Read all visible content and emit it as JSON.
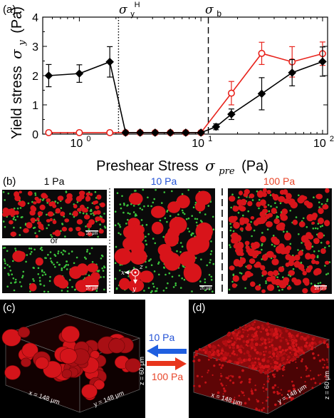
{
  "colors": {
    "series_black": "#000000",
    "series_red": "#e8231c",
    "blue_arrow": "#1f5fe0",
    "red_arrow": "#e8351c",
    "label_1pa": "#000000",
    "label_10pa": "#2453d6",
    "label_100pa": "#e8462a",
    "droplet_red": "#d8141a",
    "particle_green": "#3cc43c",
    "background_dark": "#0a0a0a"
  },
  "panel_a": {
    "tag": "(a)",
    "sigma_y_H": "σ",
    "sigma_y_H_sub": "y",
    "sigma_y_H_sup": "H",
    "sigma_b": "σ",
    "sigma_b_sub": "b"
  },
  "panel_b": {
    "tag": "(b)",
    "label_1pa": "1 Pa",
    "or_text": "or",
    "label_10pa": "10 Pa",
    "label_100pa": "100 Pa",
    "scalebar": "20 μm",
    "axis_x": "x",
    "axis_y": "y",
    "axis_z": "z"
  },
  "panel_c": {
    "tag": "(c)",
    "x_dim": "x = 148 μm",
    "y_dim": "y = 148 μm",
    "z_dim": "z = 60 μm"
  },
  "panel_d": {
    "tag": "(d)",
    "x_dim": "x = 148 μm",
    "y_dim": "y = 148 μm",
    "z_dim": "z = 60 μm"
  },
  "arrows": {
    "top_label": "10 Pa",
    "bottom_label": "100 Pa"
  },
  "chart_data": {
    "type": "scatter",
    "xscale": "log",
    "xlim": [
      0.5,
      110
    ],
    "ylim": [
      0,
      4
    ],
    "xlabel": "Preshear Stress",
    "xlabel_symbol": "σ",
    "xlabel_sub": "pre",
    "xlabel_unit": "(Pa)",
    "ylabel": "Yield stress",
    "ylabel_symbol": "σ",
    "ylabel_sub": "y",
    "ylabel_unit": "(Pa)",
    "xticks": [
      1,
      10,
      100
    ],
    "xtick_labels": [
      "10",
      "10",
      "10"
    ],
    "xtick_exps": [
      "0",
      "1",
      "2"
    ],
    "yticks": [
      0,
      1,
      2,
      3,
      4
    ],
    "ytick_labels": [
      "0",
      "1",
      "2",
      "3",
      "4"
    ],
    "vlines": [
      {
        "x": 2.1,
        "style": "dotted"
      },
      {
        "x": 11.5,
        "style": "dashed"
      }
    ],
    "series": [
      {
        "marker": "filled-diamond",
        "color": "#000000",
        "x": [
          0.56,
          1.0,
          1.78,
          2.4,
          3.16,
          4.2,
          5.6,
          7.5,
          10.0,
          13.3,
          17.8,
          31.6,
          56.2,
          100
        ],
        "y": [
          2.0,
          2.07,
          2.47,
          0.05,
          0.05,
          0.05,
          0.05,
          0.05,
          0.05,
          0.25,
          0.68,
          1.38,
          2.1,
          2.48
        ],
        "err": [
          0.38,
          0.3,
          0.52,
          0,
          0,
          0,
          0,
          0,
          0,
          0.1,
          0.18,
          0.55,
          0.45,
          0.5
        ]
      },
      {
        "marker": "open-circle",
        "color": "#e8231c",
        "x": [
          0.56,
          1.0,
          1.78,
          2.4,
          3.16,
          4.2,
          5.6,
          7.5,
          10.0,
          17.8,
          31.6,
          56.2,
          100
        ],
        "y": [
          0.05,
          0.05,
          0.05,
          0.05,
          0.05,
          0.05,
          0.05,
          0.05,
          0.05,
          1.4,
          2.76,
          2.47,
          2.75
        ],
        "err": [
          0,
          0,
          0,
          0,
          0,
          0,
          0,
          0,
          0,
          0.4,
          0.38,
          0.52,
          0.4
        ]
      }
    ]
  }
}
